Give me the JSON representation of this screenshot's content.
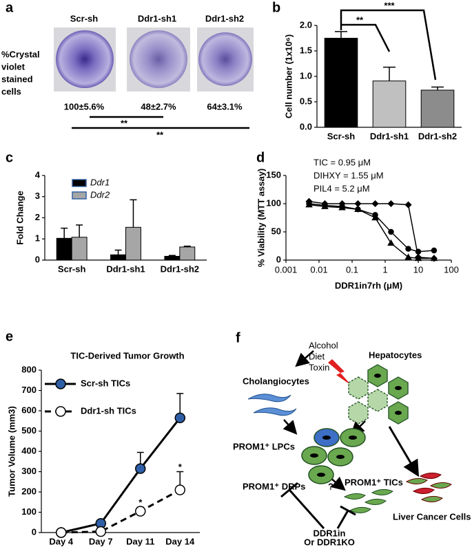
{
  "panel_labels": [
    "a",
    "b",
    "c",
    "d",
    "e",
    "f"
  ],
  "panel_a": {
    "row_label": [
      "%Crystal",
      "violet",
      "stained",
      "cells"
    ],
    "columns": [
      "Scr-sh",
      "Ddr1-sh1",
      "Ddr1-sh2"
    ],
    "percentages": [
      "100±5.6%",
      "48±2.7%",
      "64±3.1%"
    ],
    "significance": [
      "**",
      "**"
    ]
  },
  "chart_data": [
    {
      "type": "bar",
      "ylabel": "Cell number (1x10⁶)",
      "categories": [
        "Scr-sh",
        "Ddr1-sh1",
        "Ddr1-sh2"
      ],
      "values": [
        1.75,
        0.91,
        0.73
      ],
      "errors": [
        0.13,
        0.27,
        0.06
      ],
      "colors": [
        "#000000",
        "#c0c0c0",
        "#8c8c8c"
      ],
      "ylim": [
        0,
        2
      ],
      "yticks": [
        {
          "value": 0,
          "label": "0.0"
        },
        {
          "value": 0.5,
          "label": "0.5"
        },
        {
          "value": 1,
          "label": "1.0"
        },
        {
          "value": 1.5,
          "label": "1.5"
        },
        {
          "value": 2,
          "label": "2.0"
        }
      ],
      "significance": [
        "**",
        "***"
      ]
    },
    {
      "type": "bar",
      "ylabel": "Fold Change",
      "categories": [
        "Scr-sh",
        "Ddr1-sh1",
        "Ddr1-sh2"
      ],
      "series": [
        {
          "name": "Ddr1",
          "color": "#000000",
          "values": [
            1.03,
            0.25,
            0.18
          ],
          "errors": [
            0.48,
            0.22,
            0.04
          ]
        },
        {
          "name": "Ddr2",
          "color": "#a6a6a6",
          "values": [
            1.08,
            1.55,
            0.62
          ],
          "errors": [
            0.58,
            1.3,
            0.04
          ]
        }
      ],
      "ylim": [
        0,
        4
      ],
      "yticks": [
        0,
        1,
        2,
        3,
        4
      ],
      "legend": "top-left"
    },
    {
      "type": "line",
      "ylabel": "% Viability (MTT assay)",
      "xlabel": "DDR1in7rh (μM)",
      "xscale": "log",
      "annotations": [
        "TIC = 0.95 μM",
        "DIHXY = 1.55 μM",
        "PIL4 = 5.2 μM"
      ],
      "x": [
        0.005,
        0.015,
        0.05,
        0.15,
        0.5,
        1.5,
        5,
        10,
        30
      ],
      "series": [
        {
          "marker": "circle",
          "color": "#000000",
          "values": [
            100,
            97,
            95,
            90,
            80,
            50,
            20,
            15,
            17
          ]
        },
        {
          "marker": "triangle",
          "color": "#000000",
          "values": [
            98,
            95,
            93,
            90,
            75,
            30,
            5,
            3,
            3
          ]
        },
        {
          "marker": "diamond",
          "color": "#000000",
          "values": [
            104,
            100,
            100,
            100,
            100,
            100,
            98,
            5,
            3
          ]
        }
      ],
      "xlim": [
        0.001,
        100
      ],
      "xticks": [
        0.001,
        0.01,
        0.1,
        1,
        10,
        100
      ],
      "ylim": [
        0,
        150
      ],
      "yticks": [
        0,
        50,
        100,
        150
      ]
    },
    {
      "type": "line",
      "title": "TIC-Derived Tumor Growth",
      "ylabel": "Tumor Volume (mm3)",
      "categories": [
        "Day 4",
        "Day 7",
        "Day 11",
        "Day 14"
      ],
      "series": [
        {
          "name": "Scr-sh TICs",
          "color": "#2e5fa6",
          "dashed": false,
          "values": [
            0,
            45,
            315,
            565
          ],
          "errors": [
            0,
            0,
            80,
            120
          ]
        },
        {
          "name": "Ddr1-sh TICs",
          "color": "#ffffff",
          "dashed": true,
          "values": [
            0,
            5,
            105,
            210
          ],
          "errors": [
            0,
            0,
            20,
            90
          ]
        }
      ],
      "annotations": [
        "*",
        "*"
      ],
      "ylim": [
        0,
        800
      ],
      "yticks": [
        0,
        100,
        200,
        300,
        400,
        500,
        600,
        700,
        800
      ]
    }
  ],
  "panel_f": {
    "insults": [
      "Alcohol",
      "Diet",
      "Toxin"
    ],
    "hepatocytes": "Hepatocytes",
    "cholangiocytes": "Cholangiocytes",
    "lpcs": "PROM1⁺ LPCs",
    "drps": "PROM1⁺ DRPs",
    "tics": "PROM1⁺ TICs",
    "question": "?",
    "cancer": "Liver Cancer Cells",
    "inhibitor": [
      "DDR1in",
      "Or DDR1KO"
    ]
  }
}
